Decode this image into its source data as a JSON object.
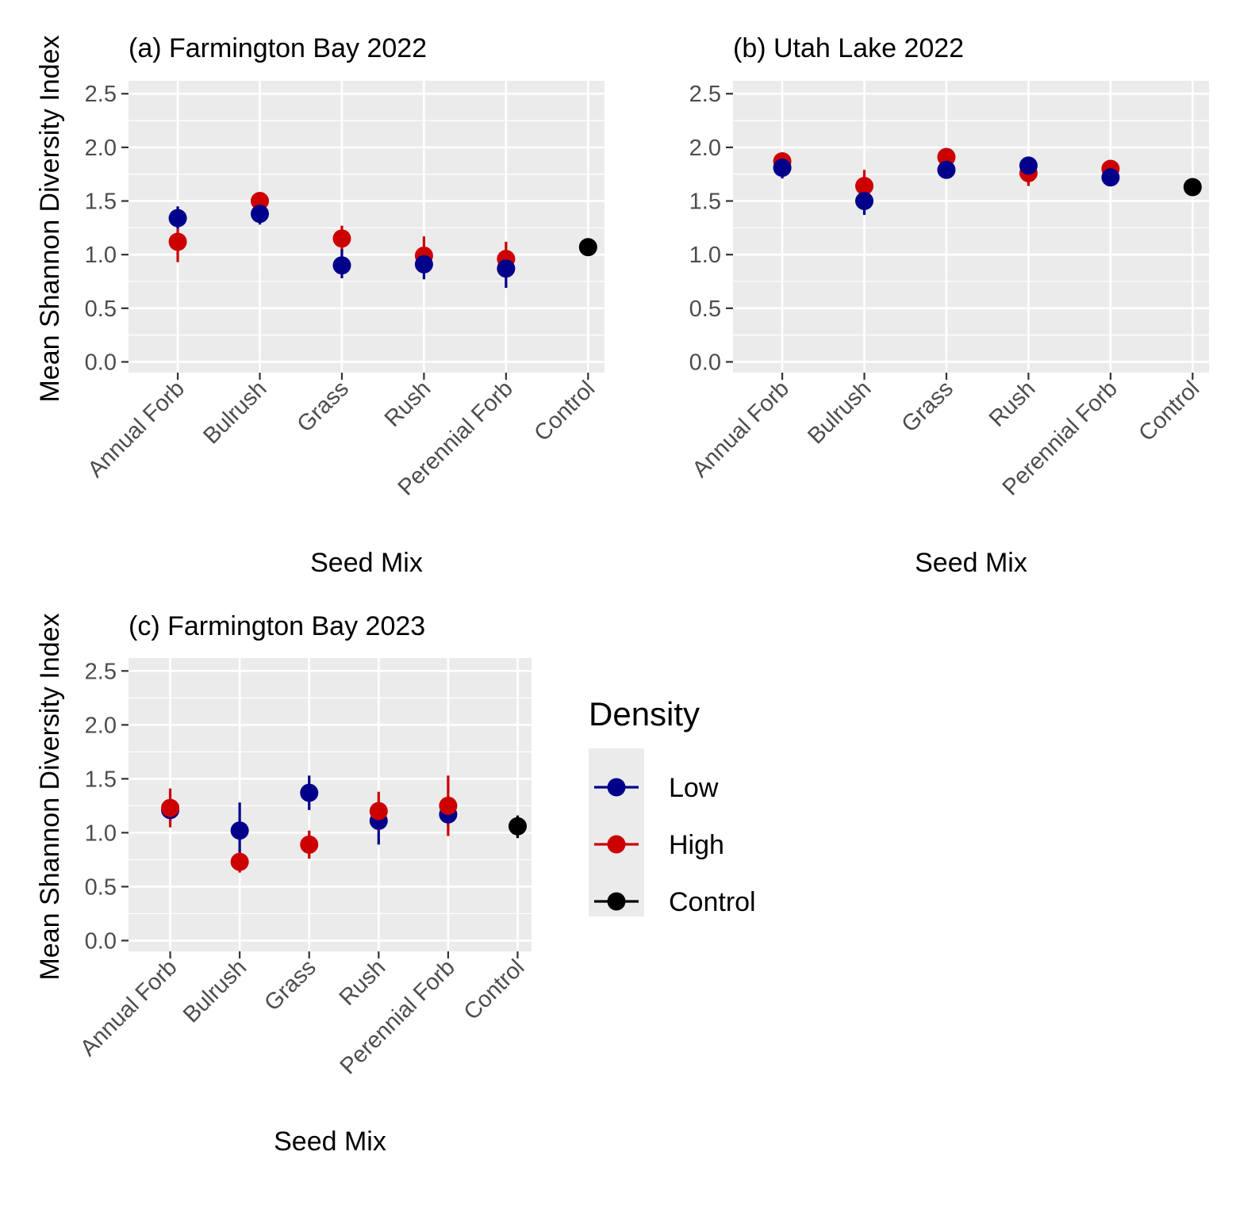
{
  "chart_data": [
    {
      "type": "scatter",
      "title": "(a) Farmington Bay 2022",
      "xlabel": "Seed Mix",
      "ylabel": "Mean Shannon Diversity Index",
      "categories": [
        "Annual Forb",
        "Bulrush",
        "Grass",
        "Rush",
        "Perennial Forb",
        "Control"
      ],
      "ylim": [
        -0.1,
        2.62
      ],
      "yticks": [
        "0.0",
        "0.5",
        "1.0",
        "1.5",
        "2.0",
        "2.5"
      ],
      "series": [
        {
          "name": "High",
          "x": [
            "Annual Forb",
            "Bulrush",
            "Grass",
            "Rush",
            "Perennial Forb"
          ],
          "y": [
            1.12,
            1.5,
            1.15,
            0.99,
            0.96
          ],
          "lower": [
            0.93,
            1.41,
            1.04,
            0.84,
            0.84
          ],
          "upper": [
            1.24,
            1.55,
            1.27,
            1.17,
            1.12
          ]
        },
        {
          "name": "Low",
          "x": [
            "Annual Forb",
            "Bulrush",
            "Grass",
            "Rush",
            "Perennial Forb"
          ],
          "y": [
            1.34,
            1.38,
            0.9,
            0.91,
            0.87
          ],
          "lower": [
            1.24,
            1.28,
            0.78,
            0.77,
            0.69
          ],
          "upper": [
            1.45,
            1.46,
            1.05,
            1.02,
            1.03
          ]
        },
        {
          "name": "Control",
          "x": [
            "Control"
          ],
          "y": [
            1.07
          ],
          "lower": [
            0.99
          ],
          "upper": [
            1.15
          ]
        }
      ]
    },
    {
      "type": "scatter",
      "title": "(b) Utah Lake 2022",
      "xlabel": "Seed Mix",
      "ylabel": "",
      "categories": [
        "Annual Forb",
        "Bulrush",
        "Grass",
        "Rush",
        "Perennial Forb",
        "Control"
      ],
      "ylim": [
        -0.1,
        2.62
      ],
      "yticks": [
        "0.0",
        "0.5",
        "1.0",
        "1.5",
        "2.0",
        "2.5"
      ],
      "series": [
        {
          "name": "High",
          "x": [
            "Annual Forb",
            "Bulrush",
            "Grass",
            "Rush",
            "Perennial Forb"
          ],
          "y": [
            1.87,
            1.64,
            1.91,
            1.76,
            1.8
          ],
          "lower": [
            1.8,
            1.53,
            1.85,
            1.64,
            1.75
          ],
          "upper": [
            1.93,
            1.79,
            1.96,
            1.87,
            1.85
          ]
        },
        {
          "name": "Low",
          "x": [
            "Annual Forb",
            "Bulrush",
            "Grass",
            "Rush",
            "Perennial Forb"
          ],
          "y": [
            1.81,
            1.5,
            1.79,
            1.83,
            1.72
          ],
          "lower": [
            1.71,
            1.37,
            1.71,
            1.76,
            1.65
          ],
          "upper": [
            1.9,
            1.61,
            1.86,
            1.89,
            1.78
          ]
        },
        {
          "name": "Control",
          "x": [
            "Control"
          ],
          "y": [
            1.63
          ],
          "lower": [
            1.56
          ],
          "upper": [
            1.69
          ]
        }
      ]
    },
    {
      "type": "scatter",
      "title": "(c) Farmington Bay 2023",
      "xlabel": "Seed Mix",
      "ylabel": "Mean Shannon Diversity Index",
      "categories": [
        "Annual Forb",
        "Bulrush",
        "Grass",
        "Rush",
        "Perennial Forb",
        "Control"
      ],
      "ylim": [
        -0.1,
        2.62
      ],
      "yticks": [
        "0.0",
        "0.5",
        "1.0",
        "1.5",
        "2.0",
        "2.5"
      ],
      "series": [
        {
          "name": "Low",
          "x": [
            "Annual Forb",
            "Bulrush",
            "Grass",
            "Rush",
            "Perennial Forb"
          ],
          "y": [
            1.21,
            1.02,
            1.37,
            1.11,
            1.17
          ],
          "lower": [
            1.1,
            0.78,
            1.21,
            0.89,
            1.06
          ],
          "upper": [
            1.32,
            1.28,
            1.53,
            1.27,
            1.28
          ]
        },
        {
          "name": "High",
          "x": [
            "Annual Forb",
            "Bulrush",
            "Grass",
            "Rush",
            "Perennial Forb"
          ],
          "y": [
            1.23,
            0.73,
            0.89,
            1.2,
            1.25
          ],
          "lower": [
            1.05,
            0.63,
            0.76,
            1.02,
            0.97
          ],
          "upper": [
            1.41,
            0.82,
            1.02,
            1.38,
            1.53
          ]
        },
        {
          "name": "Control",
          "x": [
            "Control"
          ],
          "y": [
            1.06
          ],
          "lower": [
            0.95
          ],
          "upper": [
            1.16
          ]
        }
      ]
    }
  ],
  "legend": {
    "title": "Density",
    "placement": "right of panel (c)",
    "items": [
      {
        "label": "Low",
        "color": "#00008B"
      },
      {
        "label": "High",
        "color": "#CC0000"
      },
      {
        "label": "Control",
        "color": "#000000"
      }
    ]
  },
  "colors": {
    "Low": "#00008B",
    "High": "#CC0000",
    "Control": "#000000",
    "panel_bg": "#EBEBEB",
    "grid": "#FFFFFF"
  }
}
